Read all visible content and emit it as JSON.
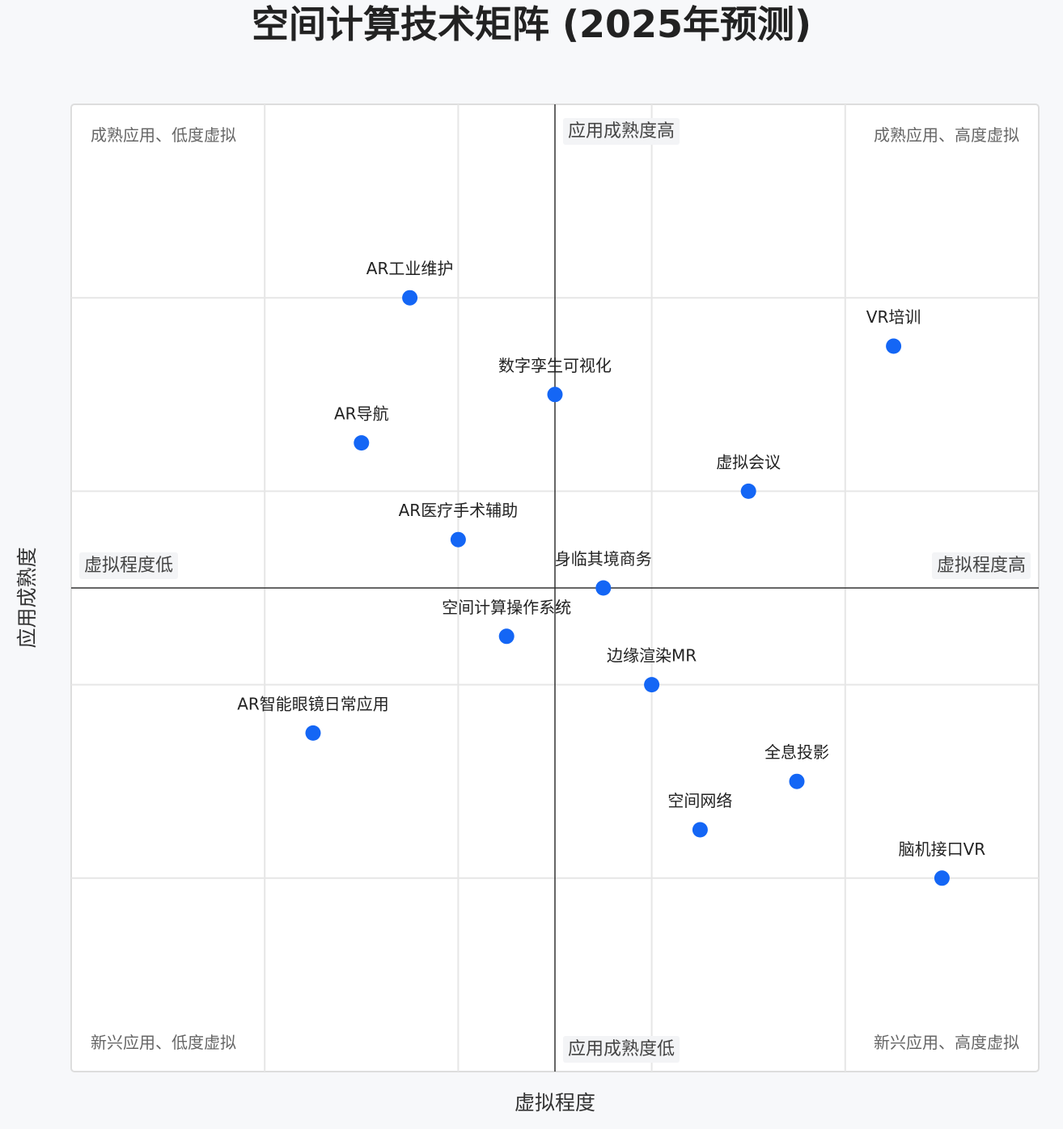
{
  "colors": {
    "point": "#1466f5",
    "plot_background": "#ffffff",
    "plot_border": "#dddddd",
    "grid": "#e6e6e6",
    "axis_line": "#333333",
    "axis_label_background": "#f3f4f6"
  },
  "chart_data": {
    "type": "scatter",
    "title": "空间计算技术矩阵 (2025年预测)",
    "xlabel": "虚拟程度",
    "ylabel": "应用成熟度",
    "xlim": [
      0,
      10
    ],
    "ylim": [
      0,
      10
    ],
    "grid": true,
    "axis_end_labels": {
      "x_low": "虚拟程度低",
      "x_high": "虚拟程度高",
      "y_high": "应用成熟度高",
      "y_low": "应用成熟度低"
    },
    "quadrant_labels": {
      "top_left": "成熟应用、低度虚拟",
      "top_right": "成熟应用、高度虚拟",
      "bottom_left": "新兴应用、低度虚拟",
      "bottom_right": "新兴应用、高度虚拟"
    },
    "points": [
      {
        "label": "AR工业维护",
        "x": 3.5,
        "y": 8.0
      },
      {
        "label": "VR培训",
        "x": 8.5,
        "y": 7.5
      },
      {
        "label": "数字孪生可视化",
        "x": 5.0,
        "y": 7.0
      },
      {
        "label": "AR导航",
        "x": 3.0,
        "y": 6.5
      },
      {
        "label": "虚拟会议",
        "x": 7.0,
        "y": 6.0
      },
      {
        "label": "AR医疗手术辅助",
        "x": 4.0,
        "y": 5.5
      },
      {
        "label": "身临其境商务",
        "x": 5.5,
        "y": 5.0
      },
      {
        "label": "空间计算操作系统",
        "x": 4.5,
        "y": 4.5
      },
      {
        "label": "边缘渲染MR",
        "x": 6.0,
        "y": 4.0
      },
      {
        "label": "AR智能眼镜日常应用",
        "x": 2.5,
        "y": 3.5
      },
      {
        "label": "全息投影",
        "x": 7.5,
        "y": 3.0
      },
      {
        "label": "空间网络",
        "x": 6.5,
        "y": 2.5
      },
      {
        "label": "脑机接口VR",
        "x": 9.0,
        "y": 2.0
      }
    ]
  }
}
